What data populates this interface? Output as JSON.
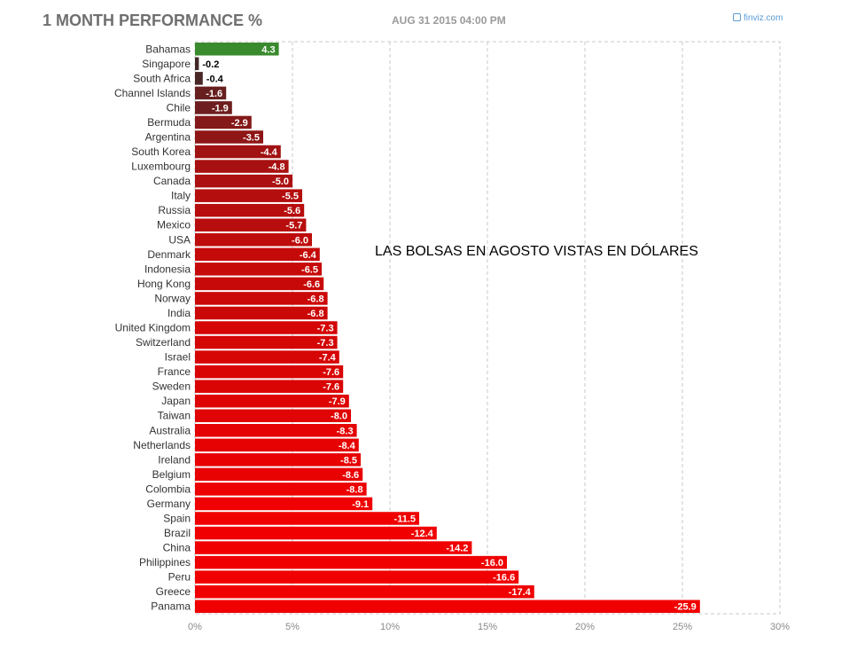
{
  "header": {
    "title": "1 MONTH PERFORMANCE %",
    "date": "AUG 31 2015 04:00 PM",
    "brand": "finviz.com"
  },
  "annotation": "LAS BOLSAS EN AGOSTO VISTAS EN DÓLARES",
  "colors": {
    "positive": "#3a8a2e",
    "negative_light": "#f00000",
    "negative_dark": "#3a2a2a",
    "grid": "#c8c8c8",
    "axis_text": "#8a8a8a",
    "label_text": "#333333"
  },
  "chart_data": {
    "type": "bar",
    "orientation": "horizontal",
    "grid": true,
    "xlim": [
      0,
      30
    ],
    "xticks": [
      "0%",
      "5%",
      "10%",
      "15%",
      "20%",
      "25%",
      "30%"
    ],
    "categories": [
      "Bahamas",
      "Singapore",
      "South Africa",
      "Channel Islands",
      "Chile",
      "Bermuda",
      "Argentina",
      "South Korea",
      "Luxembourg",
      "Canada",
      "Italy",
      "Russia",
      "Mexico",
      "USA",
      "Denmark",
      "Indonesia",
      "Hong Kong",
      "Norway",
      "India",
      "United Kingdom",
      "Switzerland",
      "Israel",
      "France",
      "Sweden",
      "Japan",
      "Taiwan",
      "Australia",
      "Netherlands",
      "Ireland",
      "Belgium",
      "Colombia",
      "Germany",
      "Spain",
      "Brazil",
      "China",
      "Philippines",
      "Peru",
      "Greece",
      "Panama"
    ],
    "values": [
      4.3,
      -0.2,
      -0.4,
      -1.6,
      -1.9,
      -2.9,
      -3.5,
      -4.4,
      -4.8,
      -5.0,
      -5.5,
      -5.6,
      -5.7,
      -6.0,
      -6.4,
      -6.5,
      -6.6,
      -6.8,
      -6.8,
      -7.3,
      -7.3,
      -7.4,
      -7.6,
      -7.6,
      -7.9,
      -8.0,
      -8.3,
      -8.4,
      -8.5,
      -8.6,
      -8.8,
      -9.1,
      -11.5,
      -12.4,
      -14.2,
      -16.0,
      -16.6,
      -17.4,
      -25.9
    ],
    "labels": [
      "4.3",
      "-0.2",
      "-0.4",
      "-1.6",
      "-1.9",
      "-2.9",
      "-3.5",
      "-4.4",
      "-4.8",
      "-5.0",
      "-5.5",
      "-5.6",
      "-5.7",
      "-6.0",
      "-6.4",
      "-6.5",
      "-6.6",
      "-6.8",
      "-6.8",
      "-7.3",
      "-7.3",
      "-7.4",
      "-7.6",
      "-7.6",
      "-7.9",
      "-8.0",
      "-8.3",
      "-8.4",
      "-8.5",
      "-8.6",
      "-8.8",
      "-9.1",
      "-11.5",
      "-12.4",
      "-14.2",
      "-16.0",
      "-16.6",
      "-17.4",
      "-25.9"
    ]
  }
}
